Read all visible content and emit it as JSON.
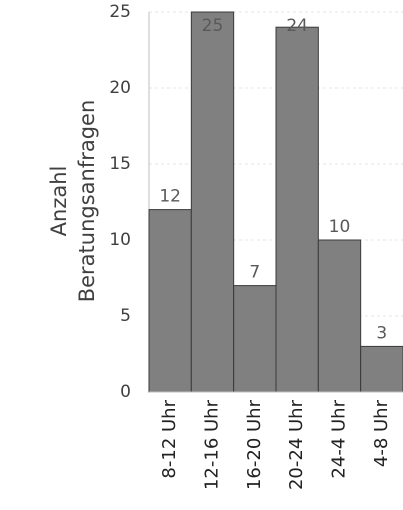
{
  "chart_data": {
    "type": "bar",
    "y_label": [
      "Anzahl",
      "Beratungsanfragen"
    ],
    "categories": [
      "8-12 Uhr",
      "12-16 Uhr",
      "16-20 Uhr",
      "20-24 Uhr",
      "24-4 Uhr",
      "4-8 Uhr"
    ],
    "values": [
      12,
      25,
      7,
      24,
      10,
      3
    ],
    "color": "#808080",
    "ylim": [
      0,
      25
    ],
    "yticks": [
      0,
      5,
      10,
      15,
      20,
      25
    ],
    "grid": true
  }
}
